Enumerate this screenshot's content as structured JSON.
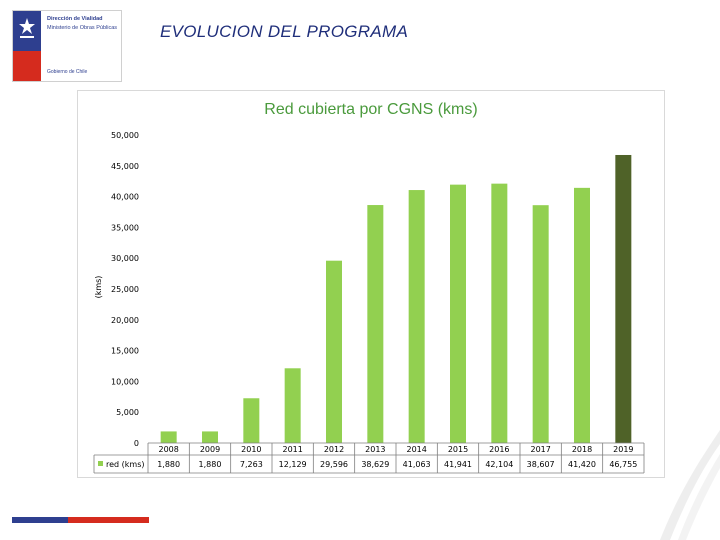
{
  "header": {
    "title": "EVOLUCION DEL PROGRAMA",
    "logo": {
      "line1": "Dirección de Vialidad",
      "line2": "Ministerio de Obras Públicas",
      "line3": "Gobierno de Chile"
    }
  },
  "colors": {
    "bar": "#92d050",
    "bar_highlight": "#4f6228",
    "title": "#4a9a3c",
    "brand_blue": "#2e3f8f",
    "brand_red": "#d52b1e"
  },
  "chart_data": {
    "type": "bar",
    "title": "Red cubierta por CGNS (kms)",
    "ylabel": "(kms)",
    "xlabel": "",
    "ylim": [
      0,
      50000
    ],
    "yticks": [
      "0",
      "5,000",
      "10,000",
      "15,000",
      "20,000",
      "25,000",
      "30,000",
      "35,000",
      "40,000",
      "45,000",
      "50,000"
    ],
    "categories": [
      "2008",
      "2009",
      "2010",
      "2011",
      "2012",
      "2013",
      "2014",
      "2015",
      "2016",
      "2017",
      "2018",
      "2019"
    ],
    "series": [
      {
        "name": "red (kms)",
        "values": [
          1880,
          1880,
          7263,
          12129,
          29596,
          38629,
          41063,
          41941,
          42104,
          38607,
          41420,
          46755
        ],
        "labels": [
          "1,880",
          "1,880",
          "7,263",
          "12,129",
          "29,596",
          "38,629",
          "41,063",
          "41,941",
          "42,104",
          "38,607",
          "41,420",
          "46,755"
        ]
      }
    ],
    "highlight_index": 11,
    "grid": false,
    "legend": "data-table"
  }
}
